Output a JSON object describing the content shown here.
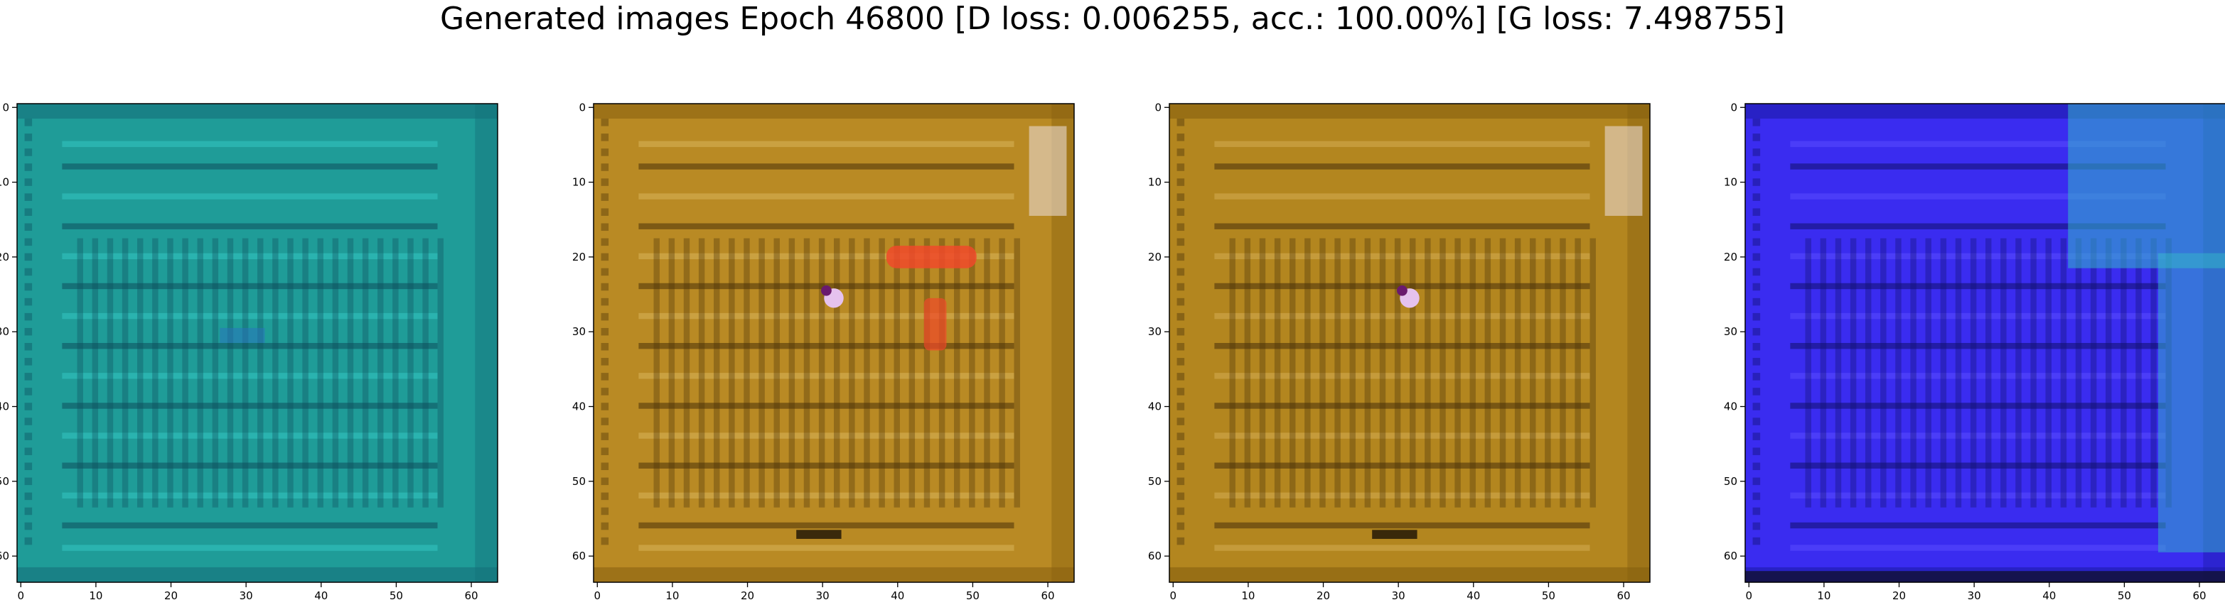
{
  "figure": {
    "title": "Generated images Epoch 46800 [D loss: 0.006255, acc.: 100.00%] [G loss: 7.498755]"
  },
  "axes": {
    "x_ticks": [
      "0",
      "10",
      "20",
      "30",
      "40",
      "50",
      "60"
    ],
    "y_ticks": [
      "0",
      "10",
      "20",
      "30",
      "40",
      "50",
      "60"
    ],
    "tick_values": [
      0,
      10,
      20,
      30,
      40,
      50,
      60
    ],
    "image_size": 64
  },
  "panels": [
    {
      "id": "image-1",
      "palette": "teal",
      "base": "#1f9c98",
      "light": "#33c6c2",
      "dark": "#0d4e5c",
      "accent": "#2a6fbf",
      "border": "#15707a"
    },
    {
      "id": "image-2",
      "palette": "amber",
      "base": "#b98a24",
      "light": "#d8b45a",
      "dark": "#4a3208",
      "accent": "#f0492a",
      "border": "#8a6210"
    },
    {
      "id": "image-3",
      "palette": "amber",
      "base": "#b3861f",
      "light": "#d3ad52",
      "dark": "#47300a",
      "accent": "#e6a0d2",
      "border": "#86600f"
    },
    {
      "id": "image-4",
      "palette": "blue",
      "base": "#3a2cf0",
      "light": "#5a4cff",
      "dark": "#10106a",
      "accent": "#33b8c8",
      "border": "#1c1aa8"
    }
  ]
}
